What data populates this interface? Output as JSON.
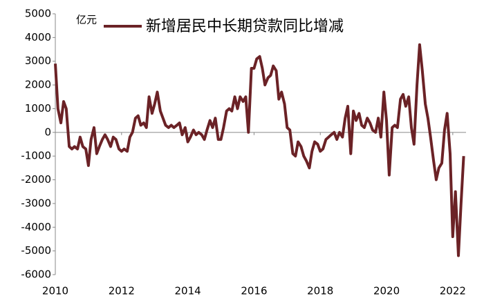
{
  "chart_data": {
    "type": "line",
    "y_unit": "亿元",
    "x": [
      2010,
      2010.08,
      2010.17,
      2010.25,
      2010.33,
      2010.42,
      2010.5,
      2010.58,
      2010.67,
      2010.75,
      2010.83,
      2010.92,
      2011,
      2011.08,
      2011.17,
      2011.25,
      2011.33,
      2011.42,
      2011.5,
      2011.58,
      2011.67,
      2011.75,
      2011.83,
      2011.92,
      2012,
      2012.08,
      2012.17,
      2012.25,
      2012.33,
      2012.42,
      2012.5,
      2012.58,
      2012.67,
      2012.75,
      2012.83,
      2012.92,
      2013,
      2013.08,
      2013.17,
      2013.25,
      2013.33,
      2013.42,
      2013.5,
      2013.58,
      2013.67,
      2013.75,
      2013.83,
      2013.92,
      2014,
      2014.08,
      2014.17,
      2014.25,
      2014.33,
      2014.42,
      2014.5,
      2014.58,
      2014.67,
      2014.75,
      2014.83,
      2014.92,
      2015,
      2015.08,
      2015.17,
      2015.25,
      2015.33,
      2015.42,
      2015.5,
      2015.58,
      2015.67,
      2015.75,
      2015.83,
      2015.92,
      2016,
      2016.08,
      2016.17,
      2016.25,
      2016.33,
      2016.42,
      2016.5,
      2016.58,
      2016.67,
      2016.75,
      2016.83,
      2016.92,
      2017,
      2017.08,
      2017.17,
      2017.25,
      2017.33,
      2017.42,
      2017.5,
      2017.58,
      2017.67,
      2017.75,
      2017.83,
      2017.92,
      2018,
      2018.08,
      2018.17,
      2018.25,
      2018.33,
      2018.42,
      2018.5,
      2018.58,
      2018.67,
      2018.75,
      2018.83,
      2018.92,
      2019,
      2019.08,
      2019.17,
      2019.25,
      2019.33,
      2019.42,
      2019.5,
      2019.58,
      2019.67,
      2019.75,
      2019.83,
      2019.92,
      2020,
      2020.08,
      2020.17,
      2020.25,
      2020.33,
      2020.42,
      2020.5,
      2020.58,
      2020.67,
      2020.75,
      2020.83,
      2020.92,
      2021,
      2021.08,
      2021.17,
      2021.25,
      2021.33,
      2021.42,
      2021.5,
      2021.58,
      2021.67,
      2021.75,
      2021.83,
      2021.92,
      2022,
      2022.08,
      2022.17,
      2022.25,
      2022.33
    ],
    "series": [
      {
        "name": "新增居民中长期贷款同比增减",
        "color": "#6b2226",
        "values": [
          2900,
          1000,
          400,
          1300,
          1000,
          -600,
          -700,
          -600,
          -700,
          -200,
          -600,
          -700,
          -1400,
          -300,
          200,
          -900,
          -600,
          -300,
          -100,
          -300,
          -600,
          -200,
          -300,
          -700,
          -800,
          -700,
          -800,
          -200,
          0,
          600,
          700,
          300,
          400,
          200,
          1500,
          800,
          1200,
          1700,
          900,
          600,
          300,
          200,
          300,
          200,
          300,
          400,
          -100,
          200,
          -400,
          -200,
          100,
          -100,
          0,
          -100,
          -300,
          100,
          500,
          200,
          600,
          -300,
          -300,
          200,
          900,
          1000,
          900,
          1500,
          1000,
          1500,
          1300,
          1500,
          0,
          2700,
          2700,
          3100,
          3200,
          2700,
          2000,
          2300,
          2400,
          2800,
          2600,
          1400,
          1700,
          1200,
          200,
          100,
          -900,
          -1000,
          -400,
          -600,
          -1000,
          -1200,
          -1500,
          -800,
          -400,
          -500,
          -800,
          -700,
          -300,
          -200,
          -100,
          0,
          -300,
          0,
          -200,
          600,
          1100,
          -900,
          900,
          500,
          800,
          300,
          200,
          600,
          400,
          100,
          0,
          600,
          -200,
          1700,
          500,
          -1800,
          200,
          300,
          200,
          1400,
          1600,
          1100,
          1500,
          200,
          -500,
          2000,
          3700,
          2600,
          1200,
          600,
          -200,
          -1200,
          -2000,
          -1500,
          -1300,
          100,
          800,
          -900,
          -4400,
          -2500,
          -5200,
          -3000,
          -1000
        ]
      }
    ],
    "xlim": [
      2010,
      2022.4
    ],
    "xticks": [
      2010,
      2012,
      2014,
      2016,
      2018,
      2020,
      2022
    ],
    "ylim": [
      -6000,
      5000
    ],
    "yticks": [
      -6000,
      -5000,
      -4000,
      -3000,
      -2000,
      -1000,
      0,
      1000,
      2000,
      3000,
      4000,
      5000
    ]
  }
}
